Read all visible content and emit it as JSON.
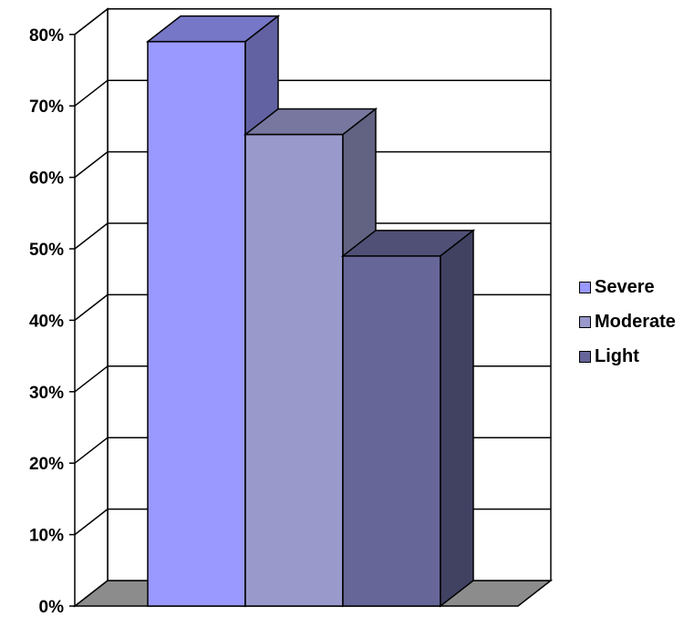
{
  "chart_data": {
    "type": "bar",
    "title": "",
    "xlabel": "",
    "ylabel": "",
    "ylim": [
      0,
      80
    ],
    "y_tick_labels": [
      "0%",
      "10%",
      "20%",
      "30%",
      "40%",
      "50%",
      "60%",
      "70%",
      "80%"
    ],
    "grid": true,
    "three_d": true,
    "legend_position": "right",
    "series": [
      {
        "name": "Severe",
        "value": 79,
        "color": "#9999ff"
      },
      {
        "name": "Moderate",
        "value": 66,
        "color": "#9999cc"
      },
      {
        "name": "Light",
        "value": 49,
        "color": "#666699"
      }
    ]
  }
}
